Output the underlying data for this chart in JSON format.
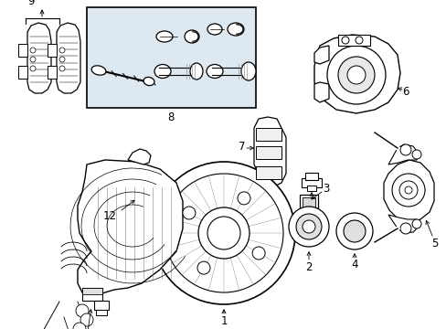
{
  "background_color": "#ffffff",
  "line_color": "#000000",
  "fig_width": 4.89,
  "fig_height": 3.6,
  "dpi": 100,
  "box8_color": "#dde8f0",
  "label_fontsize": 8.5
}
